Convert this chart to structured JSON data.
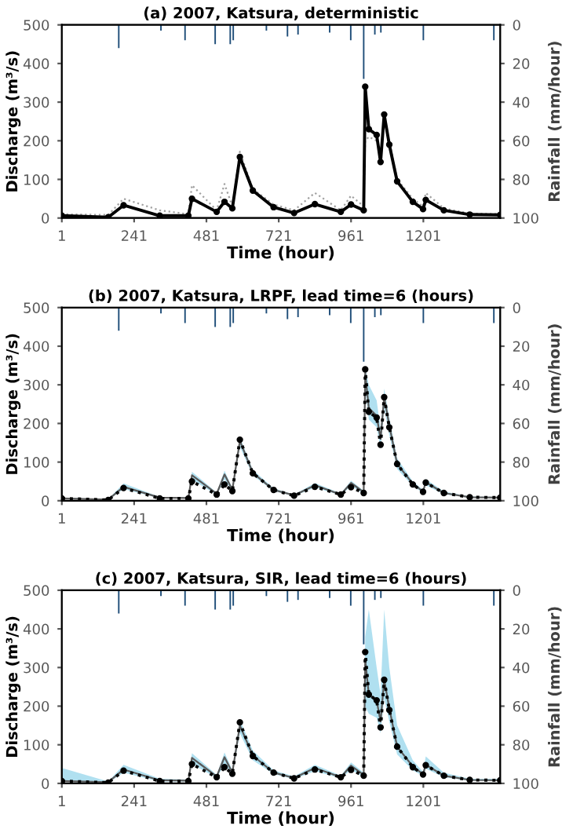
{
  "chart_data": [
    {
      "type": "line",
      "title": "(a) 2007, Katsura, deterministic",
      "xlabel": "Time (hour)",
      "ylabel": "Discharge (m³/s)",
      "y2label": "Rainfall (mm/hour)",
      "xlim": [
        1,
        1456
      ],
      "xticks": [
        1,
        241,
        481,
        721,
        961,
        1201
      ],
      "ylim": [
        0,
        500
      ],
      "yticks": [
        0,
        100,
        200,
        300,
        400,
        500
      ],
      "y2lim": [
        100,
        0
      ],
      "y2ticks": [
        0,
        20,
        40,
        60,
        80,
        100
      ],
      "grid": false,
      "legend": false,
      "x": [
        1,
        155,
        206,
        326,
        421,
        433,
        515,
        541,
        567,
        592,
        635,
        704,
        772,
        841,
        927,
        961,
        1003,
        1008,
        1020,
        1046,
        1059,
        1071,
        1088,
        1114,
        1166,
        1200,
        1209,
        1269,
        1355,
        1456
      ],
      "series": [
        {
          "color": "#a0a0a0",
          "line_style": "dotted",
          "marker": "none",
          "values": [
            10,
            8,
            50,
            20,
            10,
            85,
            20,
            88,
            30,
            172,
            75,
            35,
            20,
            65,
            20,
            58,
            30,
            200,
            210,
            200,
            170,
            250,
            200,
            100,
            50,
            30,
            65,
            25,
            12,
            10
          ]
        },
        {
          "color": "#000000",
          "line_style": "solid",
          "marker": "circle",
          "values": [
            6,
            2,
            33,
            6,
            6,
            50,
            16,
            42,
            25,
            158,
            71,
            28,
            13,
            36,
            16,
            35,
            20,
            340,
            230,
            215,
            145,
            268,
            190,
            95,
            42,
            23,
            47,
            20,
            9,
            8
          ]
        },
        {
          "type": "bar",
          "axis": "y2",
          "color": "#1f4e79",
          "x": [
            190,
            330,
            410,
            510,
            560,
            570,
            680,
            750,
            785,
            890,
            960,
            1003,
            1040,
            1060,
            1201,
            1435
          ],
          "values": [
            12,
            3,
            8,
            10,
            10,
            8,
            3,
            6,
            5,
            4,
            8,
            28,
            5,
            4,
            8,
            8
          ]
        }
      ]
    },
    {
      "type": "line",
      "title": "(b) 2007, Katsura, LRPF, lead time=6 (hours)",
      "xlabel": "Time (hour)",
      "ylabel": "Discharge (m³/s)",
      "y2label": "Rainfall (mm/hour)",
      "xlim": [
        1,
        1456
      ],
      "xticks": [
        1,
        241,
        481,
        721,
        961,
        1201
      ],
      "ylim": [
        0,
        500
      ],
      "yticks": [
        0,
        100,
        200,
        300,
        400,
        500
      ],
      "y2lim": [
        100,
        0
      ],
      "y2ticks": [
        0,
        20,
        40,
        60,
        80,
        100
      ],
      "grid": false,
      "legend": false,
      "x": [
        1,
        155,
        206,
        326,
        421,
        433,
        515,
        541,
        567,
        592,
        635,
        704,
        772,
        841,
        927,
        961,
        1003,
        1008,
        1020,
        1046,
        1059,
        1071,
        1088,
        1114,
        1166,
        1200,
        1209,
        1269,
        1355,
        1456
      ],
      "series": [
        {
          "color": "#595959",
          "line_style": "solid",
          "marker": "none",
          "values": [
            6,
            3,
            36,
            8,
            7,
            66,
            18,
            68,
            28,
            155,
            72,
            28,
            14,
            40,
            16,
            46,
            22,
            330,
            240,
            220,
            160,
            268,
            195,
            95,
            44,
            24,
            48,
            20,
            9,
            8
          ],
          "lower": [
            5,
            2,
            30,
            6,
            6,
            55,
            15,
            55,
            24,
            140,
            65,
            25,
            12,
            34,
            14,
            38,
            18,
            290,
            210,
            190,
            135,
            240,
            170,
            82,
            38,
            20,
            40,
            17,
            8,
            7
          ],
          "upper": [
            8,
            4,
            45,
            10,
            9,
            75,
            21,
            78,
            33,
            165,
            80,
            32,
            16,
            46,
            19,
            52,
            26,
            345,
            300,
            260,
            185,
            290,
            215,
            110,
            50,
            28,
            56,
            24,
            11,
            10
          ]
        },
        {
          "color": "#000000",
          "line_style": "dotted",
          "marker": "circle",
          "values": [
            6,
            2,
            33,
            6,
            6,
            50,
            16,
            42,
            25,
            158,
            71,
            28,
            13,
            36,
            16,
            35,
            20,
            340,
            230,
            215,
            145,
            268,
            190,
            95,
            42,
            23,
            47,
            20,
            9,
            8
          ]
        },
        {
          "type": "bar",
          "axis": "y2",
          "color": "#1f4e79",
          "x": [
            190,
            330,
            410,
            510,
            560,
            570,
            680,
            750,
            785,
            890,
            960,
            1003,
            1040,
            1060,
            1201,
            1435
          ],
          "values": [
            12,
            3,
            8,
            10,
            10,
            8,
            3,
            6,
            5,
            4,
            8,
            28,
            5,
            4,
            8,
            8
          ]
        }
      ]
    },
    {
      "type": "line",
      "title": "(c) 2007, Katsura, SIR, lead time=6 (hours)",
      "xlabel": "Time (hour)",
      "ylabel": "Discharge (m³/s)",
      "y2label": "Rainfall (mm/hour)",
      "xlim": [
        1,
        1456
      ],
      "xticks": [
        1,
        241,
        481,
        721,
        961,
        1201
      ],
      "ylim": [
        0,
        500
      ],
      "yticks": [
        0,
        100,
        200,
        300,
        400,
        500
      ],
      "y2lim": [
        100,
        0
      ],
      "y2ticks": [
        0,
        20,
        40,
        60,
        80,
        100
      ],
      "grid": false,
      "legend": false,
      "x": [
        1,
        155,
        206,
        326,
        421,
        433,
        515,
        541,
        567,
        592,
        635,
        704,
        772,
        841,
        927,
        961,
        1003,
        1008,
        1020,
        1046,
        1059,
        1071,
        1088,
        1114,
        1166,
        1200,
        1209,
        1269,
        1355,
        1456
      ],
      "series": [
        {
          "color": "#595959",
          "line_style": "solid",
          "marker": "none",
          "values": [
            6,
            3,
            36,
            8,
            7,
            66,
            18,
            68,
            28,
            150,
            72,
            28,
            14,
            40,
            16,
            46,
            22,
            320,
            230,
            215,
            160,
            268,
            195,
            95,
            44,
            24,
            48,
            20,
            9,
            8
          ],
          "lower": [
            4,
            2,
            28,
            5,
            5,
            50,
            14,
            50,
            22,
            130,
            60,
            24,
            11,
            32,
            13,
            35,
            16,
            200,
            180,
            170,
            130,
            220,
            160,
            75,
            34,
            19,
            38,
            16,
            7,
            6
          ],
          "upper": [
            40,
            5,
            48,
            12,
            10,
            78,
            22,
            80,
            35,
            165,
            85,
            34,
            18,
            48,
            20,
            54,
            28,
            380,
            450,
            300,
            230,
            450,
            300,
            150,
            60,
            30,
            70,
            28,
            12,
            12
          ]
        },
        {
          "color": "#000000",
          "line_style": "dotted",
          "marker": "circle",
          "values": [
            6,
            2,
            33,
            6,
            6,
            50,
            16,
            42,
            25,
            158,
            71,
            28,
            13,
            36,
            16,
            35,
            20,
            340,
            230,
            215,
            145,
            268,
            190,
            95,
            42,
            23,
            47,
            20,
            9,
            8
          ]
        },
        {
          "type": "bar",
          "axis": "y2",
          "color": "#1f4e79",
          "x": [
            190,
            330,
            410,
            510,
            560,
            570,
            680,
            750,
            785,
            890,
            960,
            1003,
            1040,
            1060,
            1201,
            1435
          ],
          "values": [
            12,
            3,
            8,
            10,
            10,
            8,
            3,
            6,
            5,
            4,
            8,
            28,
            5,
            4,
            8,
            8
          ]
        }
      ]
    }
  ]
}
